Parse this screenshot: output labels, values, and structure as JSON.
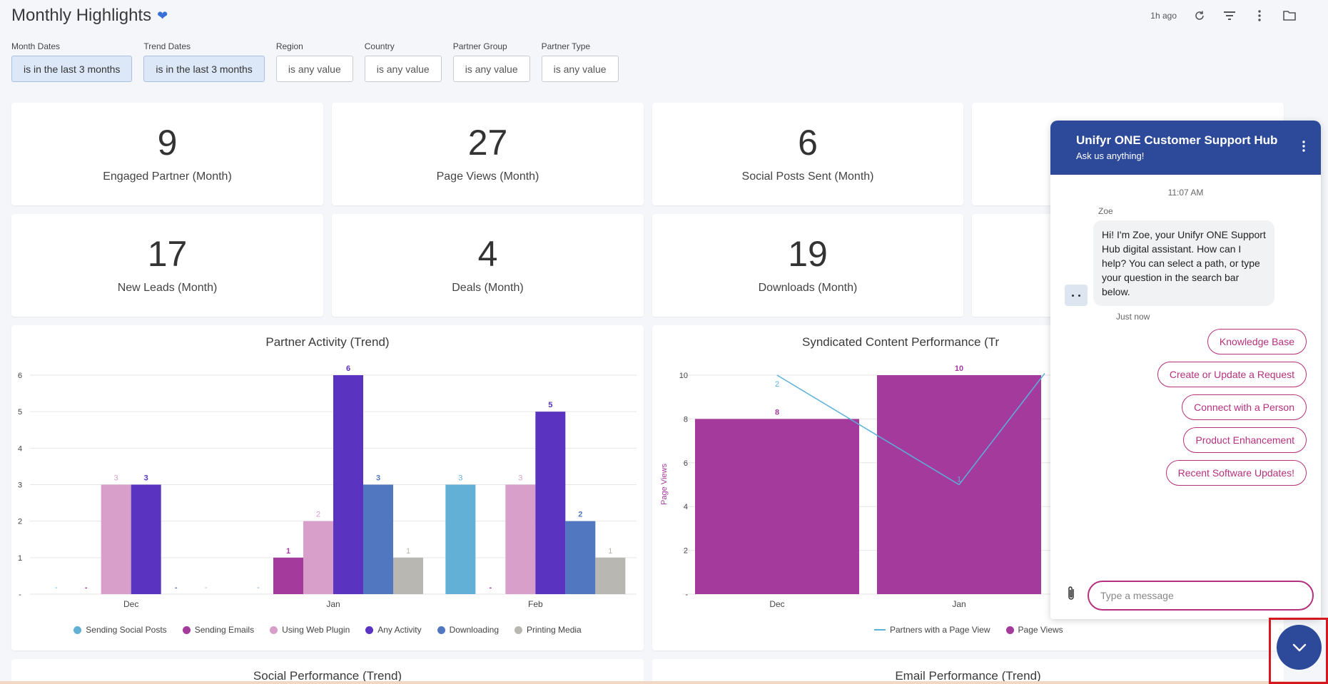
{
  "header": {
    "title": "Monthly Highlights",
    "last_updated": "1h ago"
  },
  "filters": [
    {
      "label": "Month Dates",
      "value": "is in the last 3 months",
      "active": true
    },
    {
      "label": "Trend Dates",
      "value": "is in the last 3 months",
      "active": true
    },
    {
      "label": "Region",
      "value": "is any value",
      "active": false
    },
    {
      "label": "Country",
      "value": "is any value",
      "active": false
    },
    {
      "label": "Partner Group",
      "value": "is any value",
      "active": false
    },
    {
      "label": "Partner Type",
      "value": "is any value",
      "active": false
    }
  ],
  "kpis": [
    {
      "value": "9",
      "label": "Engaged Partner (Month)"
    },
    {
      "value": "27",
      "label": "Page Views (Month)"
    },
    {
      "value": "6",
      "label": "Social Posts Sent (Month)"
    },
    {
      "value": "17",
      "label": "New Leads (Month)"
    },
    {
      "value": "4",
      "label": "Deals (Month)"
    },
    {
      "value": "19",
      "label": "Downloads (Month)"
    }
  ],
  "colors": {
    "social": "#63b0d6",
    "emails": "#a33a9c",
    "web_plugin": "#d79fc9",
    "any_activity": "#5a33c0",
    "downloading": "#5177c0",
    "printing": "#b8b7b1",
    "page_views": "#a33a9c",
    "partners_line": "#5cb0d8",
    "chat_header": "#2d4a9a",
    "chat_accent": "#b5317d"
  },
  "chart_data": [
    {
      "type": "bar",
      "title": "Partner Activity (Trend)",
      "categories": [
        "Dec",
        "Jan",
        "Feb"
      ],
      "ylim": [
        0,
        6
      ],
      "yticks": [
        0,
        1,
        2,
        3,
        4,
        5,
        6
      ],
      "series": [
        {
          "name": "Sending Social Posts",
          "values": [
            0,
            0,
            3
          ]
        },
        {
          "name": "Sending Emails",
          "values": [
            0,
            1,
            0
          ]
        },
        {
          "name": "Using Web Plugin",
          "values": [
            3,
            2,
            3
          ]
        },
        {
          "name": "Any Activity",
          "values": [
            3,
            6,
            5
          ]
        },
        {
          "name": "Downloading",
          "values": [
            0,
            3,
            2
          ]
        },
        {
          "name": "Printing Media",
          "values": [
            0,
            1,
            1
          ]
        }
      ],
      "legend": "bottom"
    },
    {
      "type": "bar",
      "title": "Syndicated Content Performance (Tr",
      "categories": [
        "Dec",
        "Jan"
      ],
      "ylabel": "Page Views",
      "ylim": [
        0,
        10
      ],
      "yticks": [
        0,
        2,
        4,
        6,
        8,
        10
      ],
      "series": [
        {
          "name": "Page Views",
          "values": [
            8,
            10
          ]
        },
        {
          "name": "Partners with a Page View",
          "type": "line",
          "values": [
            2,
            1
          ]
        }
      ],
      "legend": "bottom"
    }
  ],
  "bottom_panels": {
    "social_title": "Social Performance (Trend)",
    "email_title": "Email Performance (Trend)"
  },
  "chat": {
    "title": "Unifyr ONE Customer Support Hub",
    "subtitle": "Ask us anything!",
    "time": "11:07 AM",
    "agent": "Zoe",
    "message": "Hi! I'm Zoe, your Unifyr ONE Support Hub digital assistant.  How can I help? You can select a path, or type your question in the search bar below.",
    "message_time": "Just now",
    "quick_replies": [
      "Knowledge Base",
      "Create or Update a Request",
      "Connect with a Person",
      "Product Enhancement",
      "Recent Software Updates!"
    ],
    "input_placeholder": "Type a message"
  }
}
